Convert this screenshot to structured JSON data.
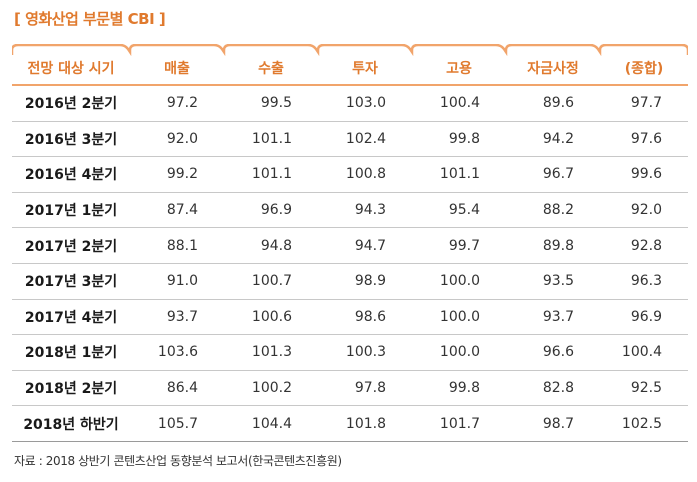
{
  "title": "[ 영화산업 부문별 CBI ]",
  "colors": {
    "accent": "#e07a2e",
    "tab_line": "#f1a46b",
    "row_line": "#c8c8c8"
  },
  "table": {
    "headers": [
      "전망 대상 시기",
      "매출",
      "수출",
      "투자",
      "고용",
      "자금사정",
      "(종합)"
    ],
    "rows": [
      [
        "2016년 2분기",
        "97.2",
        "99.5",
        "103.0",
        "100.4",
        "89.6",
        "97.7"
      ],
      [
        "2016년 3분기",
        "92.0",
        "101.1",
        "102.4",
        "99.8",
        "94.2",
        "97.6"
      ],
      [
        "2016년 4분기",
        "99.2",
        "101.1",
        "100.8",
        "101.1",
        "96.7",
        "99.6"
      ],
      [
        "2017년 1분기",
        "87.4",
        "96.9",
        "94.3",
        "95.4",
        "88.2",
        "92.0"
      ],
      [
        "2017년 2분기",
        "88.1",
        "94.8",
        "94.7",
        "99.7",
        "89.8",
        "92.8"
      ],
      [
        "2017년 3분기",
        "91.0",
        "100.7",
        "98.9",
        "100.0",
        "93.5",
        "96.3"
      ],
      [
        "2017년 4분기",
        "93.7",
        "100.6",
        "98.6",
        "100.0",
        "93.7",
        "96.9"
      ],
      [
        "2018년 1분기",
        "103.6",
        "101.3",
        "100.3",
        "100.0",
        "96.6",
        "100.4"
      ],
      [
        "2018년 2분기",
        "86.4",
        "100.2",
        "97.8",
        "99.8",
        "82.8",
        "92.5"
      ],
      [
        "2018년 하반기",
        "105.7",
        "104.4",
        "101.8",
        "101.7",
        "98.7",
        "102.5"
      ]
    ]
  },
  "source": "자료 : 2018 상반기 콘텐츠산업 동향분석 보고서(한국콘텐츠진흥원)"
}
